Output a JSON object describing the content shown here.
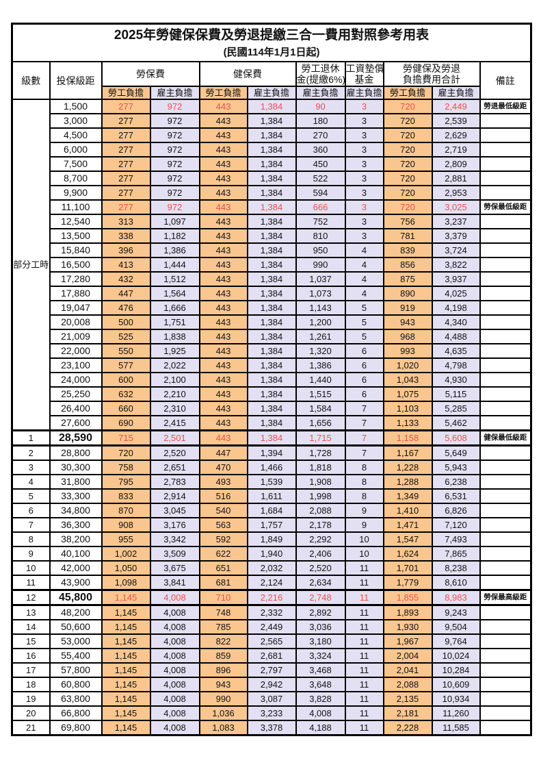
{
  "title": "2025年勞健保保費及勞退提繳三合一費用對照參考用表",
  "subtitle": "(民國114年1月1日起)",
  "colors": {
    "employee_fill": "#F9C68F",
    "employer_fill": "#E3E0F3",
    "highlight_value_red": "#E8524E",
    "remark_red": "#FA4B42",
    "border": "#000000"
  },
  "header": {
    "level": "級數",
    "bracket": "投保級距",
    "labor": "勞保費",
    "health": "健保費",
    "pension_l1": "勞工退休",
    "pension_l2": "金(提繳6%)",
    "wage_l1": "工資墊償",
    "wage_l2": "基金",
    "total_l1": "勞健保及勞退",
    "total_l2": "負擔費用合計",
    "remark": "備註",
    "employee_label": "勞工負擔",
    "employer_label": "雇主負擔"
  },
  "table": {
    "part_time_label": "部分工時",
    "part_time_rowspan": 23,
    "rows": [
      {
        "level": "",
        "bracket": "1,500",
        "values": [
          "277",
          "972",
          "443",
          "1,384",
          "90",
          "3",
          "720",
          "2,449"
        ],
        "remark": "勞退最低級距",
        "red": true,
        "thick": false,
        "bold": false
      },
      {
        "level": "",
        "bracket": "3,000",
        "values": [
          "277",
          "972",
          "443",
          "1,384",
          "180",
          "3",
          "720",
          "2,539"
        ],
        "remark": "",
        "red": false,
        "thick": false,
        "bold": false
      },
      {
        "level": "",
        "bracket": "4,500",
        "values": [
          "277",
          "972",
          "443",
          "1,384",
          "270",
          "3",
          "720",
          "2,629"
        ],
        "remark": "",
        "red": false,
        "thick": false,
        "bold": false
      },
      {
        "level": "",
        "bracket": "6,000",
        "values": [
          "277",
          "972",
          "443",
          "1,384",
          "360",
          "3",
          "720",
          "2,719"
        ],
        "remark": "",
        "red": false,
        "thick": false,
        "bold": false
      },
      {
        "level": "",
        "bracket": "7,500",
        "values": [
          "277",
          "972",
          "443",
          "1,384",
          "450",
          "3",
          "720",
          "2,809"
        ],
        "remark": "",
        "red": false,
        "thick": false,
        "bold": false
      },
      {
        "level": "",
        "bracket": "8,700",
        "values": [
          "277",
          "972",
          "443",
          "1,384",
          "522",
          "3",
          "720",
          "2,881"
        ],
        "remark": "",
        "red": false,
        "thick": false,
        "bold": false
      },
      {
        "level": "",
        "bracket": "9,900",
        "values": [
          "277",
          "972",
          "443",
          "1,384",
          "594",
          "3",
          "720",
          "2,953"
        ],
        "remark": "",
        "red": false,
        "thick": false,
        "bold": false
      },
      {
        "level": "",
        "bracket": "11,100",
        "values": [
          "277",
          "972",
          "443",
          "1,384",
          "666",
          "3",
          "720",
          "3,025"
        ],
        "remark": "勞保最低級距",
        "red": true,
        "thick": false,
        "bold": false
      },
      {
        "level": "",
        "bracket": "12,540",
        "values": [
          "313",
          "1,097",
          "443",
          "1,384",
          "752",
          "3",
          "756",
          "3,237"
        ],
        "remark": "",
        "red": false,
        "thick": false,
        "bold": false
      },
      {
        "level": "",
        "bracket": "13,500",
        "values": [
          "338",
          "1,182",
          "443",
          "1,384",
          "810",
          "3",
          "781",
          "3,379"
        ],
        "remark": "",
        "red": false,
        "thick": false,
        "bold": false
      },
      {
        "level": "",
        "bracket": "15,840",
        "values": [
          "396",
          "1,386",
          "443",
          "1,384",
          "950",
          "4",
          "839",
          "3,724"
        ],
        "remark": "",
        "red": false,
        "thick": false,
        "bold": false
      },
      {
        "level": "",
        "bracket": "16,500",
        "values": [
          "413",
          "1,444",
          "443",
          "1,384",
          "990",
          "4",
          "856",
          "3,822"
        ],
        "remark": "",
        "red": false,
        "thick": false,
        "bold": false
      },
      {
        "level": "",
        "bracket": "17,280",
        "values": [
          "432",
          "1,512",
          "443",
          "1,384",
          "1,037",
          "4",
          "875",
          "3,937"
        ],
        "remark": "",
        "red": false,
        "thick": false,
        "bold": false
      },
      {
        "level": "",
        "bracket": "17,880",
        "values": [
          "447",
          "1,564",
          "443",
          "1,384",
          "1,073",
          "4",
          "890",
          "4,025"
        ],
        "remark": "",
        "red": false,
        "thick": false,
        "bold": false
      },
      {
        "level": "",
        "bracket": "19,047",
        "values": [
          "476",
          "1,666",
          "443",
          "1,384",
          "1,143",
          "5",
          "919",
          "4,198"
        ],
        "remark": "",
        "red": false,
        "thick": false,
        "bold": false
      },
      {
        "level": "",
        "bracket": "20,008",
        "values": [
          "500",
          "1,751",
          "443",
          "1,384",
          "1,200",
          "5",
          "943",
          "4,340"
        ],
        "remark": "",
        "red": false,
        "thick": false,
        "bold": false
      },
      {
        "level": "",
        "bracket": "21,009",
        "values": [
          "525",
          "1,838",
          "443",
          "1,384",
          "1,261",
          "5",
          "968",
          "4,488"
        ],
        "remark": "",
        "red": false,
        "thick": false,
        "bold": false
      },
      {
        "level": "",
        "bracket": "22,000",
        "values": [
          "550",
          "1,925",
          "443",
          "1,384",
          "1,320",
          "6",
          "993",
          "4,635"
        ],
        "remark": "",
        "red": false,
        "thick": false,
        "bold": false
      },
      {
        "level": "",
        "bracket": "23,100",
        "values": [
          "577",
          "2,022",
          "443",
          "1,384",
          "1,386",
          "6",
          "1,020",
          "4,798"
        ],
        "remark": "",
        "red": false,
        "thick": false,
        "bold": false
      },
      {
        "level": "",
        "bracket": "24,000",
        "values": [
          "600",
          "2,100",
          "443",
          "1,384",
          "1,440",
          "6",
          "1,043",
          "4,930"
        ],
        "remark": "",
        "red": false,
        "thick": false,
        "bold": false
      },
      {
        "level": "",
        "bracket": "25,250",
        "values": [
          "632",
          "2,210",
          "443",
          "1,384",
          "1,515",
          "6",
          "1,075",
          "5,115"
        ],
        "remark": "",
        "red": false,
        "thick": false,
        "bold": false
      },
      {
        "level": "",
        "bracket": "26,400",
        "values": [
          "660",
          "2,310",
          "443",
          "1,384",
          "1,584",
          "7",
          "1,103",
          "5,285"
        ],
        "remark": "",
        "red": false,
        "thick": false,
        "bold": false
      },
      {
        "level": "",
        "bracket": "27,600",
        "values": [
          "690",
          "2,415",
          "443",
          "1,384",
          "1,656",
          "7",
          "1,133",
          "5,462"
        ],
        "remark": "",
        "red": false,
        "thick": false,
        "bold": false
      },
      {
        "level": "1",
        "bracket": "28,590",
        "values": [
          "715",
          "2,501",
          "443",
          "1,384",
          "1,715",
          "7",
          "1,158",
          "5,608"
        ],
        "remark": "健保最低級距",
        "red": true,
        "thick": true,
        "bold": true
      },
      {
        "level": "2",
        "bracket": "28,800",
        "values": [
          "720",
          "2,520",
          "447",
          "1,394",
          "1,728",
          "7",
          "1,167",
          "5,649"
        ],
        "remark": "",
        "red": false,
        "thick": false,
        "bold": false
      },
      {
        "level": "3",
        "bracket": "30,300",
        "values": [
          "758",
          "2,651",
          "470",
          "1,466",
          "1,818",
          "8",
          "1,228",
          "5,943"
        ],
        "remark": "",
        "red": false,
        "thick": false,
        "bold": false
      },
      {
        "level": "4",
        "bracket": "31,800",
        "values": [
          "795",
          "2,783",
          "493",
          "1,539",
          "1,908",
          "8",
          "1,288",
          "6,238"
        ],
        "remark": "",
        "red": false,
        "thick": false,
        "bold": false
      },
      {
        "level": "5",
        "bracket": "33,300",
        "values": [
          "833",
          "2,914",
          "516",
          "1,611",
          "1,998",
          "8",
          "1,349",
          "6,531"
        ],
        "remark": "",
        "red": false,
        "thick": false,
        "bold": false
      },
      {
        "level": "6",
        "bracket": "34,800",
        "values": [
          "870",
          "3,045",
          "540",
          "1,684",
          "2,088",
          "9",
          "1,410",
          "6,826"
        ],
        "remark": "",
        "red": false,
        "thick": false,
        "bold": false
      },
      {
        "level": "7",
        "bracket": "36,300",
        "values": [
          "908",
          "3,176",
          "563",
          "1,757",
          "2,178",
          "9",
          "1,471",
          "7,120"
        ],
        "remark": "",
        "red": false,
        "thick": false,
        "bold": false
      },
      {
        "level": "8",
        "bracket": "38,200",
        "values": [
          "955",
          "3,342",
          "592",
          "1,849",
          "2,292",
          "10",
          "1,547",
          "7,493"
        ],
        "remark": "",
        "red": false,
        "thick": false,
        "bold": false
      },
      {
        "level": "9",
        "bracket": "40,100",
        "values": [
          "1,002",
          "3,509",
          "622",
          "1,940",
          "2,406",
          "10",
          "1,624",
          "7,865"
        ],
        "remark": "",
        "red": false,
        "thick": false,
        "bold": false
      },
      {
        "level": "10",
        "bracket": "42,000",
        "values": [
          "1,050",
          "3,675",
          "651",
          "2,032",
          "2,520",
          "11",
          "1,701",
          "8,238"
        ],
        "remark": "",
        "red": false,
        "thick": false,
        "bold": false
      },
      {
        "level": "11",
        "bracket": "43,900",
        "values": [
          "1,098",
          "3,841",
          "681",
          "2,124",
          "2,634",
          "11",
          "1,779",
          "8,610"
        ],
        "remark": "",
        "red": false,
        "thick": false,
        "bold": false
      },
      {
        "level": "12",
        "bracket": "45,800",
        "values": [
          "1,145",
          "4,008",
          "710",
          "2,216",
          "2,748",
          "11",
          "1,855",
          "8,983"
        ],
        "remark": "勞保最高級距",
        "red": true,
        "thick": true,
        "bold": true
      },
      {
        "level": "13",
        "bracket": "48,200",
        "values": [
          "1,145",
          "4,008",
          "748",
          "2,332",
          "2,892",
          "11",
          "1,893",
          "9,243"
        ],
        "remark": "",
        "red": false,
        "thick": false,
        "bold": false
      },
      {
        "level": "14",
        "bracket": "50,600",
        "values": [
          "1,145",
          "4,008",
          "785",
          "2,449",
          "3,036",
          "11",
          "1,930",
          "9,504"
        ],
        "remark": "",
        "red": false,
        "thick": false,
        "bold": false
      },
      {
        "level": "15",
        "bracket": "53,000",
        "values": [
          "1,145",
          "4,008",
          "822",
          "2,565",
          "3,180",
          "11",
          "1,967",
          "9,764"
        ],
        "remark": "",
        "red": false,
        "thick": false,
        "bold": false
      },
      {
        "level": "16",
        "bracket": "55,400",
        "values": [
          "1,145",
          "4,008",
          "859",
          "2,681",
          "3,324",
          "11",
          "2,004",
          "10,024"
        ],
        "remark": "",
        "red": false,
        "thick": false,
        "bold": false
      },
      {
        "level": "17",
        "bracket": "57,800",
        "values": [
          "1,145",
          "4,008",
          "896",
          "2,797",
          "3,468",
          "11",
          "2,041",
          "10,284"
        ],
        "remark": "",
        "red": false,
        "thick": false,
        "bold": false
      },
      {
        "level": "18",
        "bracket": "60,800",
        "values": [
          "1,145",
          "4,008",
          "943",
          "2,942",
          "3,648",
          "11",
          "2,088",
          "10,609"
        ],
        "remark": "",
        "red": false,
        "thick": false,
        "bold": false
      },
      {
        "level": "19",
        "bracket": "63,800",
        "values": [
          "1,145",
          "4,008",
          "990",
          "3,087",
          "3,828",
          "11",
          "2,135",
          "10,934"
        ],
        "remark": "",
        "red": false,
        "thick": false,
        "bold": false
      },
      {
        "level": "20",
        "bracket": "66,800",
        "values": [
          "1,145",
          "4,008",
          "1,036",
          "3,233",
          "4,008",
          "11",
          "2,181",
          "11,260"
        ],
        "remark": "",
        "red": false,
        "thick": false,
        "bold": false
      },
      {
        "level": "21",
        "bracket": "69,800",
        "values": [
          "1,145",
          "4,008",
          "1,083",
          "3,378",
          "4,188",
          "11",
          "2,228",
          "11,585"
        ],
        "remark": "",
        "red": false,
        "thick": false,
        "bold": false
      }
    ]
  }
}
